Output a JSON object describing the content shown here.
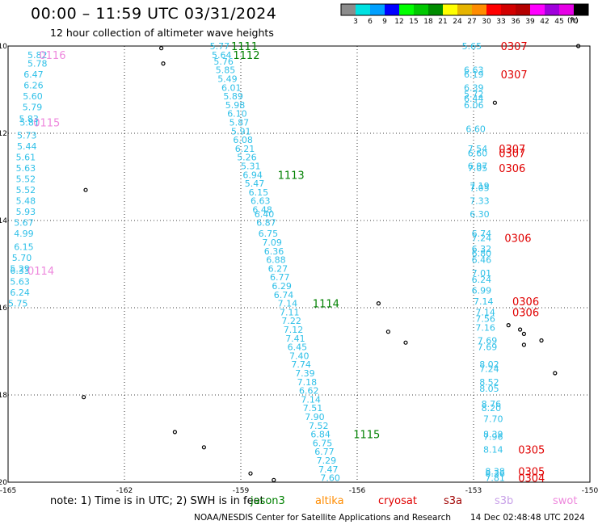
{
  "header": {
    "title": "00:00 – 11:59 UTC 03/31/2024",
    "subtitle": "12 hour collection of altimeter wave heights"
  },
  "colorbar": {
    "unit": "(ft)",
    "colors": [
      "#8c8c8c",
      "#00e1e1",
      "#00a0ff",
      "#0000ff",
      "#00ff00",
      "#00c800",
      "#008c00",
      "#ffff00",
      "#e6b400",
      "#ff8c00",
      "#ff0000",
      "#d20000",
      "#b40000",
      "#ff00ff",
      "#a000dc",
      "#e600e6",
      "#000000"
    ],
    "labels": [
      "3",
      "6",
      "9",
      "12",
      "15",
      "18",
      "21",
      "24",
      "27",
      "30",
      "33",
      "36",
      "39",
      "42",
      "45",
      "70"
    ]
  },
  "map": {
    "lon_ticks": [
      "-165",
      "-162",
      "-159",
      "-156",
      "-153",
      "-150"
    ],
    "lat_ticks": [
      "-10",
      "-12",
      "-14",
      "-16",
      "-18",
      "-20"
    ],
    "grid_lons": [
      -162,
      -159,
      -156,
      -153
    ],
    "grid_lats": [
      -12,
      -14,
      -16,
      -18
    ],
    "tracks": [
      {
        "color": "#2fc0e8",
        "labels": [
          {
            "text": "5.82",
            "lon": -164.5,
            "lat": -10.2
          },
          {
            "text": "5.78",
            "lon": -164.5,
            "lat": -10.4
          },
          {
            "text": "6.47",
            "lon": -164.6,
            "lat": -10.65
          },
          {
            "text": "6.26",
            "lon": -164.6,
            "lat": -10.9
          },
          {
            "text": "5.60",
            "lon": -164.62,
            "lat": -11.15
          },
          {
            "text": "5.79",
            "lon": -164.63,
            "lat": -11.4
          },
          {
            "text": "5.83",
            "lon": -164.72,
            "lat": -11.67
          },
          {
            "text": "5.81",
            "lon": -164.7,
            "lat": -11.75
          },
          {
            "text": "5.73",
            "lon": -164.77,
            "lat": -12.05
          },
          {
            "text": "5.44",
            "lon": -164.77,
            "lat": -12.3
          },
          {
            "text": "5.61",
            "lon": -164.8,
            "lat": -12.55
          },
          {
            "text": "5.63",
            "lon": -164.8,
            "lat": -12.8
          },
          {
            "text": "5.52",
            "lon": -164.8,
            "lat": -13.05
          },
          {
            "text": "5.52",
            "lon": -164.8,
            "lat": -13.3
          },
          {
            "text": "5.48",
            "lon": -164.8,
            "lat": -13.55
          },
          {
            "text": "5.93",
            "lon": -164.8,
            "lat": -13.8
          },
          {
            "text": "5.67",
            "lon": -164.85,
            "lat": -14.05
          },
          {
            "text": "4.99",
            "lon": -164.85,
            "lat": -14.3
          },
          {
            "text": "6.15",
            "lon": -164.85,
            "lat": -14.6
          },
          {
            "text": "5.70",
            "lon": -164.9,
            "lat": -14.85
          },
          {
            "text": "5.29",
            "lon": -164.95,
            "lat": -15.1
          },
          {
            "text": "6.33",
            "lon": -164.95,
            "lat": -15.15
          },
          {
            "text": "5.63",
            "lon": -164.95,
            "lat": -15.4
          },
          {
            "text": "6.24",
            "lon": -164.95,
            "lat": -15.65
          },
          {
            "text": "5.75",
            "lon": -165.0,
            "lat": -15.9
          }
        ]
      },
      {
        "color": "#2fc0e8",
        "labels": [
          {
            "text": "5.77",
            "lon": -159.8,
            "lat": -10.0
          },
          {
            "text": "5.64",
            "lon": -159.75,
            "lat": -10.2
          },
          {
            "text": "5.76",
            "lon": -159.7,
            "lat": -10.35
          },
          {
            "text": "5.85",
            "lon": -159.65,
            "lat": -10.55
          },
          {
            "text": "5.49",
            "lon": -159.6,
            "lat": -10.75
          },
          {
            "text": "6.01",
            "lon": -159.5,
            "lat": -10.95
          },
          {
            "text": "5.89",
            "lon": -159.45,
            "lat": -11.15
          },
          {
            "text": "5.98",
            "lon": -159.4,
            "lat": -11.35
          },
          {
            "text": "6.10",
            "lon": -159.35,
            "lat": -11.55
          },
          {
            "text": "5.87",
            "lon": -159.3,
            "lat": -11.75
          },
          {
            "text": "5.91",
            "lon": -159.25,
            "lat": -11.95
          },
          {
            "text": "6.08",
            "lon": -159.2,
            "lat": -12.15
          },
          {
            "text": "6.21",
            "lon": -159.15,
            "lat": -12.35
          },
          {
            "text": "5.26",
            "lon": -159.1,
            "lat": -12.55
          },
          {
            "text": "5.31",
            "lon": -159.0,
            "lat": -12.75
          },
          {
            "text": "6.94",
            "lon": -158.95,
            "lat": -12.95
          },
          {
            "text": "5.47",
            "lon": -158.9,
            "lat": -13.15
          },
          {
            "text": "6.15",
            "lon": -158.8,
            "lat": -13.35
          },
          {
            "text": "6.63",
            "lon": -158.75,
            "lat": -13.55
          },
          {
            "text": "6.48",
            "lon": -158.7,
            "lat": -13.75
          },
          {
            "text": "6.40",
            "lon": -158.65,
            "lat": -13.85
          },
          {
            "text": "6.87",
            "lon": -158.6,
            "lat": -14.05
          },
          {
            "text": "6.75",
            "lon": -158.55,
            "lat": -14.3
          },
          {
            "text": "7.09",
            "lon": -158.45,
            "lat": -14.5
          },
          {
            "text": "6.36",
            "lon": -158.4,
            "lat": -14.7
          },
          {
            "text": "6.88",
            "lon": -158.35,
            "lat": -14.9
          },
          {
            "text": "6.27",
            "lon": -158.3,
            "lat": -15.1
          },
          {
            "text": "6.77",
            "lon": -158.25,
            "lat": -15.3
          },
          {
            "text": "6.29",
            "lon": -158.2,
            "lat": -15.5
          },
          {
            "text": "6.74",
            "lon": -158.15,
            "lat": -15.7
          },
          {
            "text": "7.14",
            "lon": -158.05,
            "lat": -15.9
          },
          {
            "text": "7.11",
            "lon": -158.0,
            "lat": -16.1
          },
          {
            "text": "7.22",
            "lon": -157.95,
            "lat": -16.3
          },
          {
            "text": "7.12",
            "lon": -157.9,
            "lat": -16.5
          },
          {
            "text": "7.41",
            "lon": -157.85,
            "lat": -16.7
          },
          {
            "text": "6.45",
            "lon": -157.8,
            "lat": -16.9
          },
          {
            "text": "7.40",
            "lon": -157.75,
            "lat": -17.1
          },
          {
            "text": "7.74",
            "lon": -157.7,
            "lat": -17.3
          },
          {
            "text": "7.39",
            "lon": -157.6,
            "lat": -17.5
          },
          {
            "text": "7.18",
            "lon": -157.55,
            "lat": -17.7
          },
          {
            "text": "6.62",
            "lon": -157.5,
            "lat": -17.9
          },
          {
            "text": "7.14",
            "lon": -157.45,
            "lat": -18.1
          },
          {
            "text": "7.51",
            "lon": -157.4,
            "lat": -18.3
          },
          {
            "text": "7.90",
            "lon": -157.35,
            "lat": -18.5
          },
          {
            "text": "7.52",
            "lon": -157.25,
            "lat": -18.7
          },
          {
            "text": "6.84",
            "lon": -157.2,
            "lat": -18.9
          },
          {
            "text": "6.75",
            "lon": -157.15,
            "lat": -19.1
          },
          {
            "text": "6.77",
            "lon": -157.1,
            "lat": -19.3
          },
          {
            "text": "7.29",
            "lon": -157.05,
            "lat": -19.5
          },
          {
            "text": "7.47",
            "lon": -157.0,
            "lat": -19.7
          },
          {
            "text": "7.60",
            "lon": -156.95,
            "lat": -19.9
          }
        ]
      },
      {
        "color": "#2fc0e8",
        "labels": [
          {
            "text": "5.65",
            "lon": -153.3,
            "lat": -10.0
          },
          {
            "text": "6.63",
            "lon": -153.25,
            "lat": -10.55
          },
          {
            "text": "6.19",
            "lon": -153.25,
            "lat": -10.65
          },
          {
            "text": "6.39",
            "lon": -153.25,
            "lat": -10.95
          },
          {
            "text": "5.72",
            "lon": -153.25,
            "lat": -11.1
          },
          {
            "text": "6.44",
            "lon": -153.25,
            "lat": -11.2
          },
          {
            "text": "6.06",
            "lon": -153.25,
            "lat": -11.35
          },
          {
            "text": "6.60",
            "lon": -153.2,
            "lat": -11.9
          },
          {
            "text": "7.54",
            "lon": -153.15,
            "lat": -12.35
          },
          {
            "text": "6.60",
            "lon": -153.15,
            "lat": -12.45
          },
          {
            "text": "6.97",
            "lon": -153.15,
            "lat": -12.75
          },
          {
            "text": "7.05",
            "lon": -153.15,
            "lat": -12.8
          },
          {
            "text": "7.19",
            "lon": -153.1,
            "lat": -13.2
          },
          {
            "text": "7.05",
            "lon": -153.1,
            "lat": -13.25
          },
          {
            "text": "7.33",
            "lon": -153.1,
            "lat": -13.55
          },
          {
            "text": "6.30",
            "lon": -153.1,
            "lat": -13.85
          },
          {
            "text": "6.74",
            "lon": -153.05,
            "lat": -14.3
          },
          {
            "text": "7.24",
            "lon": -153.05,
            "lat": -14.4
          },
          {
            "text": "6.32",
            "lon": -153.05,
            "lat": -14.65
          },
          {
            "text": "6.80",
            "lon": -153.05,
            "lat": -14.75
          },
          {
            "text": "6.46",
            "lon": -153.05,
            "lat": -14.9
          },
          {
            "text": "7.01",
            "lon": -153.05,
            "lat": -15.2
          },
          {
            "text": "6.24",
            "lon": -153.05,
            "lat": -15.35
          },
          {
            "text": "6.99",
            "lon": -153.05,
            "lat": -15.6
          },
          {
            "text": "7.14",
            "lon": -153.0,
            "lat": -15.85
          },
          {
            "text": "7.14",
            "lon": -152.95,
            "lat": -16.1
          },
          {
            "text": "7.56",
            "lon": -152.95,
            "lat": -16.25
          },
          {
            "text": "7.16",
            "lon": -152.95,
            "lat": -16.45
          },
          {
            "text": "7.69",
            "lon": -152.9,
            "lat": -16.75
          },
          {
            "text": "7.69",
            "lon": -152.9,
            "lat": -16.9
          },
          {
            "text": "8.02",
            "lon": -152.85,
            "lat": -17.3
          },
          {
            "text": "7.24",
            "lon": -152.85,
            "lat": -17.4
          },
          {
            "text": "8.52",
            "lon": -152.85,
            "lat": -17.7
          },
          {
            "text": "8.05",
            "lon": -152.85,
            "lat": -17.85
          },
          {
            "text": "8.76",
            "lon": -152.8,
            "lat": -18.2
          },
          {
            "text": "8.20",
            "lon": -152.8,
            "lat": -18.3
          },
          {
            "text": "7.70",
            "lon": -152.75,
            "lat": -18.55
          },
          {
            "text": "8.39",
            "lon": -152.75,
            "lat": -18.9
          },
          {
            "text": "7.96",
            "lon": -152.75,
            "lat": -18.95
          },
          {
            "text": "8.14",
            "lon": -152.75,
            "lat": -19.25
          },
          {
            "text": "8.38",
            "lon": -152.7,
            "lat": -19.75
          },
          {
            "text": "8.36",
            "lon": -152.7,
            "lat": -19.8
          },
          {
            "text": "7.81",
            "lon": -152.7,
            "lat": -19.9
          }
        ]
      }
    ],
    "time_labels": [
      {
        "text": "0116",
        "lon": -164.2,
        "lat": -10.2,
        "color": "#ee88dd"
      },
      {
        "text": "0115",
        "lon": -164.35,
        "lat": -11.75,
        "color": "#ee88dd"
      },
      {
        "text": "0114",
        "lon": -164.5,
        "lat": -15.15,
        "color": "#ee88dd"
      },
      {
        "text": "1111",
        "lon": -159.25,
        "lat": -10.0,
        "color": "#008000"
      },
      {
        "text": "1112",
        "lon": -159.2,
        "lat": -10.2,
        "color": "#008000"
      },
      {
        "text": "1113",
        "lon": -158.05,
        "lat": -12.95,
        "color": "#008000"
      },
      {
        "text": "1114",
        "lon": -157.15,
        "lat": -15.9,
        "color": "#008000"
      },
      {
        "text": "1115",
        "lon": -156.1,
        "lat": -18.9,
        "color": "#008000"
      },
      {
        "text": "0307",
        "lon": -152.3,
        "lat": -10.0,
        "color": "#e00000"
      },
      {
        "text": "0307",
        "lon": -152.3,
        "lat": -10.65,
        "color": "#e00000"
      },
      {
        "text": "0307",
        "lon": -152.35,
        "lat": -12.35,
        "color": "#e00000"
      },
      {
        "text": "0307",
        "lon": -152.35,
        "lat": -12.45,
        "color": "#e00000"
      },
      {
        "text": "0306",
        "lon": -152.35,
        "lat": -12.8,
        "color": "#e00000"
      },
      {
        "text": "0306",
        "lon": -152.2,
        "lat": -14.4,
        "color": "#e00000"
      },
      {
        "text": "0306",
        "lon": -152.0,
        "lat": -15.85,
        "color": "#e00000"
      },
      {
        "text": "0306",
        "lon": -152.0,
        "lat": -16.1,
        "color": "#e00000"
      },
      {
        "text": "0305",
        "lon": -151.85,
        "lat": -19.25,
        "color": "#e00000"
      },
      {
        "text": "0305",
        "lon": -151.85,
        "lat": -19.75,
        "color": "#e00000"
      },
      {
        "text": "0304",
        "lon": -151.85,
        "lat": -19.9,
        "color": "#e00000"
      }
    ],
    "islands": [
      {
        "lon": -161.05,
        "lat": -10.05
      },
      {
        "lon": -161.0,
        "lat": -10.4
      },
      {
        "lon": -163.0,
        "lat": -13.3
      },
      {
        "lon": -155.45,
        "lat": -15.9
      },
      {
        "lon": -155.2,
        "lat": -16.55
      },
      {
        "lon": -154.75,
        "lat": -16.8
      },
      {
        "lon": -152.45,
        "lat": -11.3
      },
      {
        "lon": -152.1,
        "lat": -16.4
      },
      {
        "lon": -151.8,
        "lat": -16.5
      },
      {
        "lon": -151.7,
        "lat": -16.6
      },
      {
        "lon": -151.7,
        "lat": -16.85
      },
      {
        "lon": -151.25,
        "lat": -16.75
      },
      {
        "lon": -150.9,
        "lat": -17.5
      },
      {
        "lon": -163.05,
        "lat": -18.05
      },
      {
        "lon": -160.7,
        "lat": -18.85
      },
      {
        "lon": -159.95,
        "lat": -19.2
      },
      {
        "lon": -158.75,
        "lat": -19.8
      },
      {
        "lon": -158.15,
        "lat": -19.95
      },
      {
        "lon": -150.3,
        "lat": -10.0
      }
    ]
  },
  "footer": {
    "note": "note: 1) Time is in UTC; 2) SWH is in feet",
    "missions": [
      {
        "text": "jason3",
        "color": "#008000"
      },
      {
        "text": "altika",
        "color": "#ff8c00"
      },
      {
        "text": "cryosat",
        "color": "#e00000"
      },
      {
        "text": "s3a",
        "color": "#a00000"
      },
      {
        "text": "s3b",
        "color": "#c8a0e8"
      },
      {
        "text": "swot",
        "color": "#ee88dd"
      }
    ],
    "credit": "NOAA/NESDIS Center for Satellite Applications and Research",
    "timestamp": "14 Dec 02:48:48 UTC 2024"
  }
}
